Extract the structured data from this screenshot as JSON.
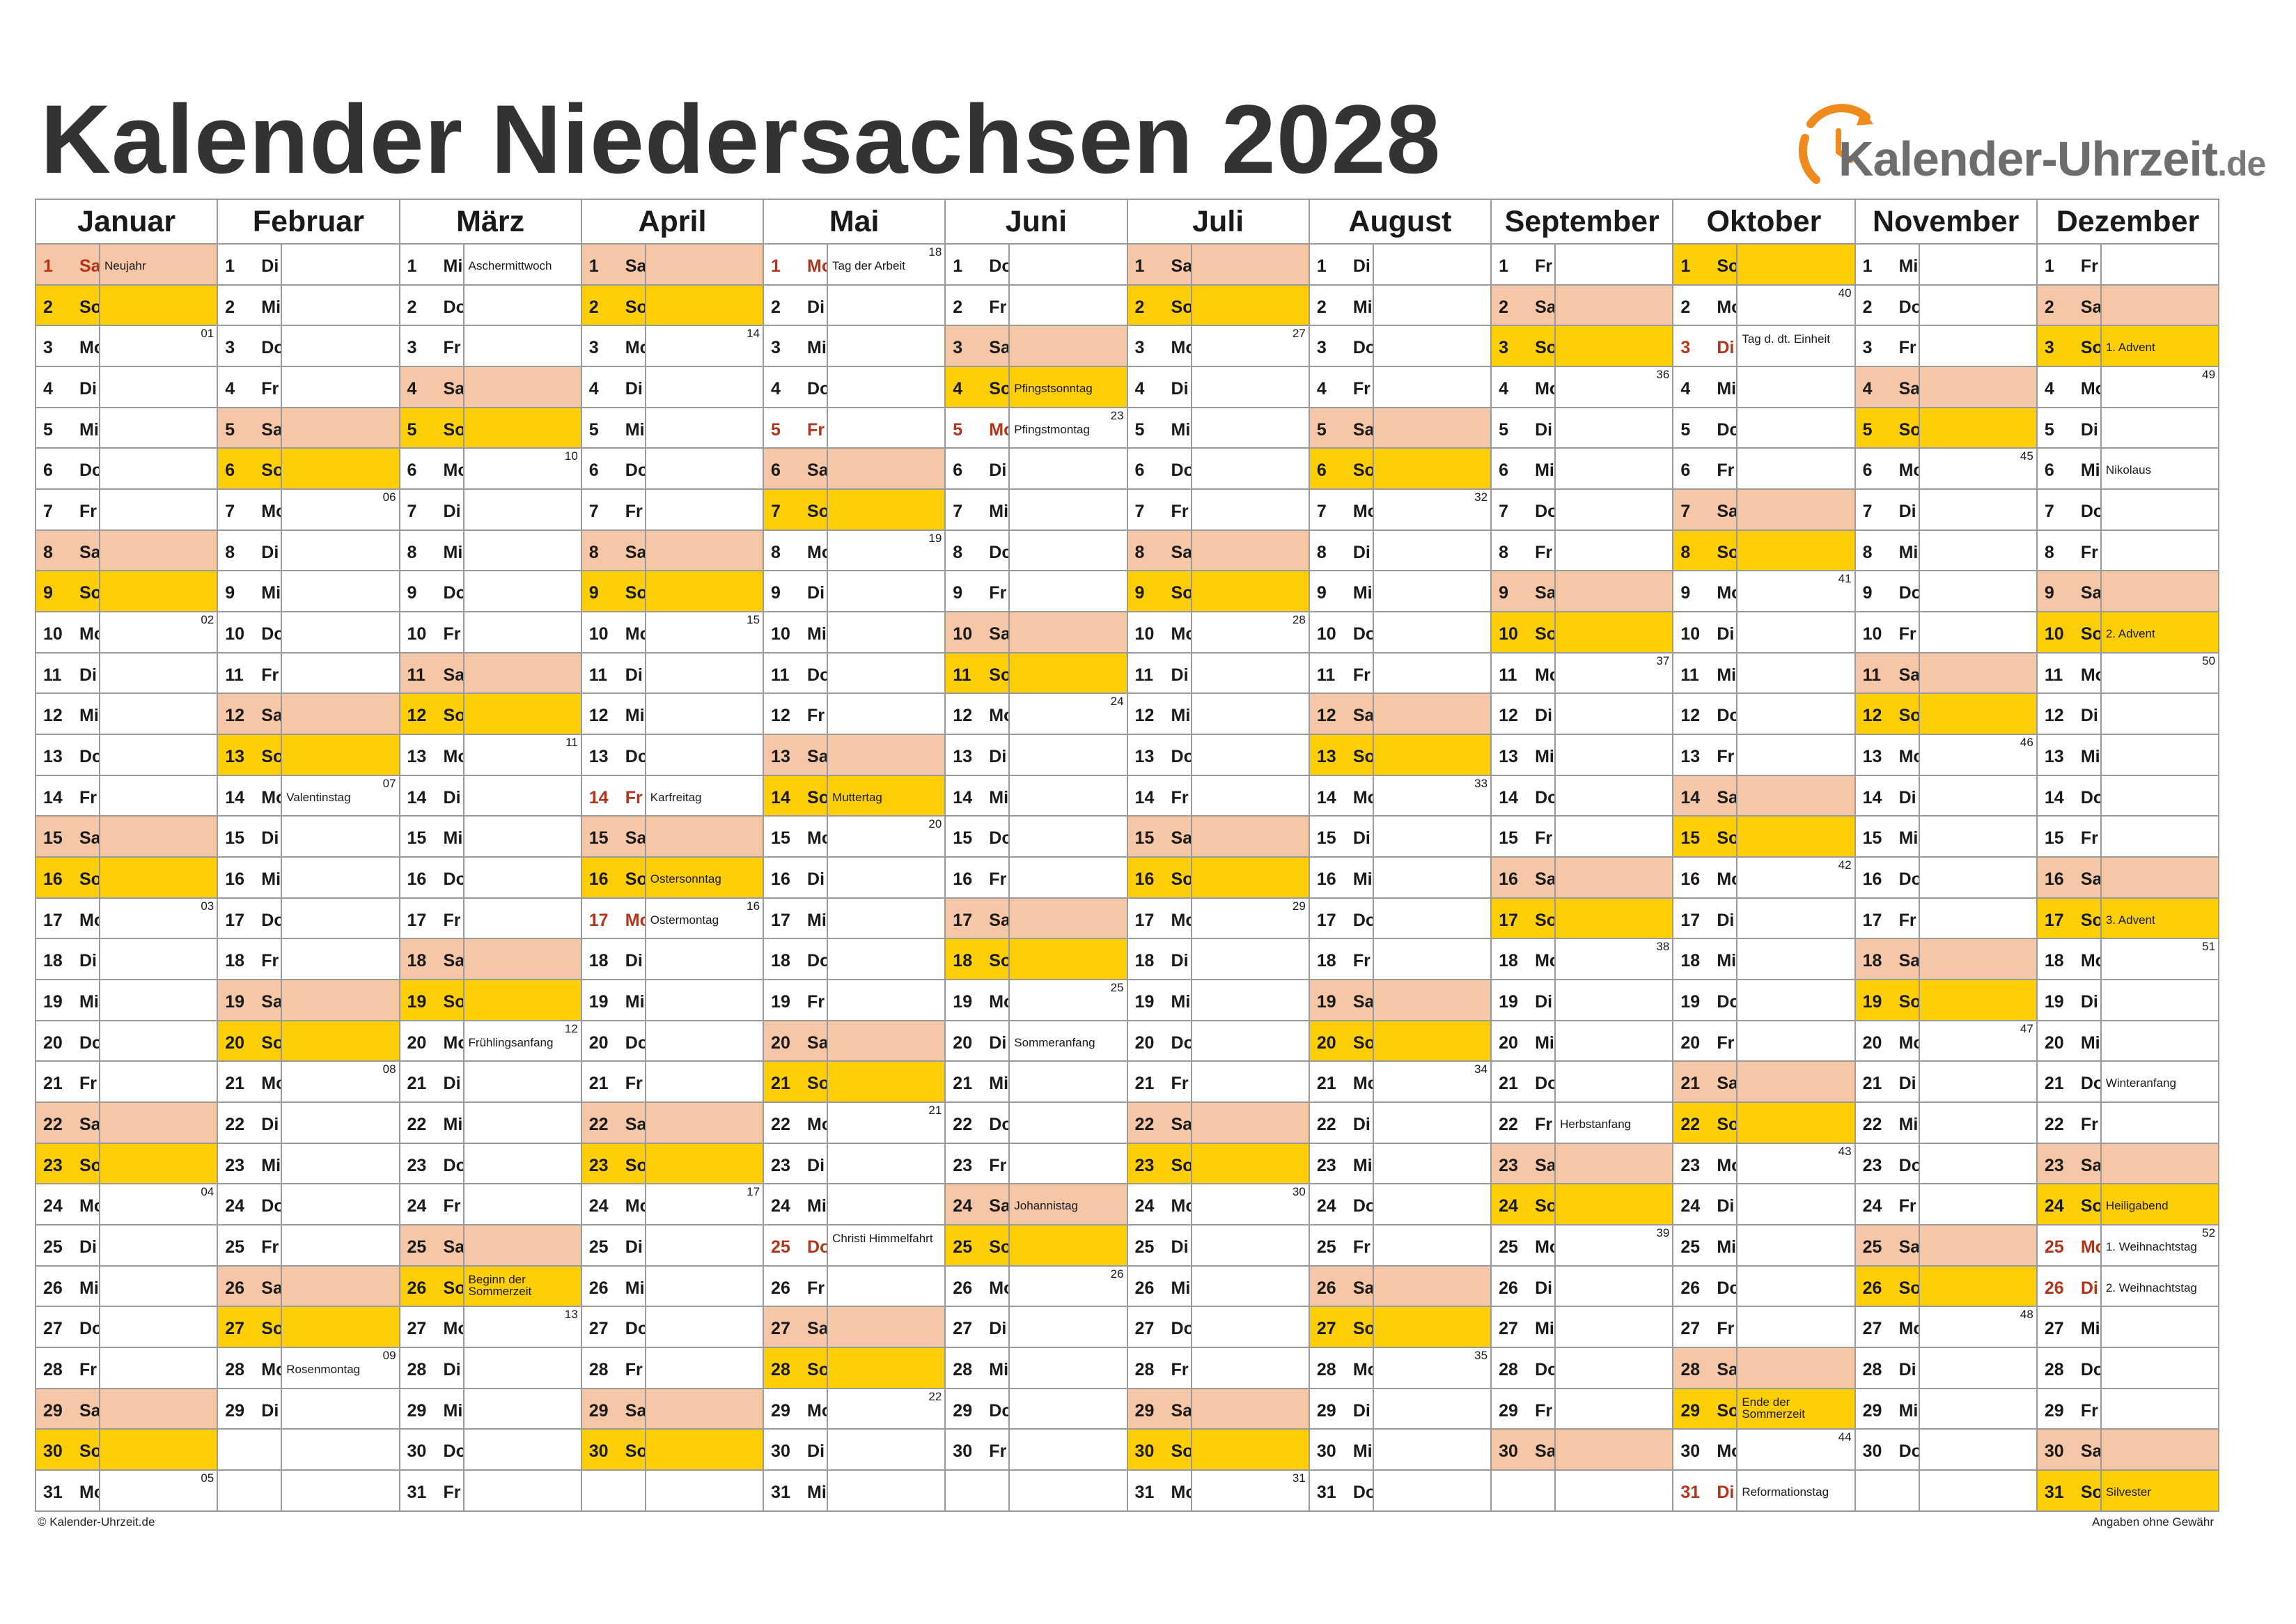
{
  "title": "Kalender Niedersachsen 2028",
  "logo": {
    "text": "Kalender-Uhrzeit",
    "tld": ".de",
    "icon": "clock-arrow-icon",
    "color": "#f08a1c"
  },
  "colors": {
    "saturday": "#f5c7a6",
    "sunday": "#fecf07",
    "holiday_text": "#b3341a"
  },
  "footer": {
    "left": "© Kalender-Uhrzeit.de",
    "right": "Angaben ohne Gewähr"
  },
  "weekday_abbr": [
    "Mo",
    "Di",
    "Mi",
    "Do",
    "Fr",
    "Sa",
    "So"
  ],
  "months": [
    {
      "name": "Januar",
      "days": 31,
      "start": 5,
      "holidays": {
        "1": "Neujahr"
      },
      "weeks": {
        "3": "01",
        "10": "02",
        "17": "03",
        "24": "04",
        "31": "05"
      }
    },
    {
      "name": "Februar",
      "days": 29,
      "start": 1,
      "notes": {
        "14": "Valentinstag",
        "28": "Rosenmontag"
      },
      "weeks": {
        "7": "06",
        "14": "07",
        "21": "08",
        "28": "09"
      }
    },
    {
      "name": "März",
      "days": 31,
      "start": 2,
      "notes": {
        "1": "Aschermittwoch",
        "20": "Frühlingsanfang",
        "26": "Beginn der Sommerzeit"
      },
      "weeks": {
        "6": "10",
        "13": "11",
        "20": "12",
        "27": "13"
      }
    },
    {
      "name": "April",
      "days": 30,
      "start": 5,
      "holidays": {
        "14": "Karfreitag",
        "17": "Ostermontag"
      },
      "notes": {
        "16": "Ostersonntag"
      },
      "weeks": {
        "3": "14",
        "10": "15",
        "17": "16",
        "24": "17"
      }
    },
    {
      "name": "Mai",
      "days": 31,
      "start": 0,
      "holidays": {
        "1": "Tag der Arbeit",
        "5": "",
        "25": "Christi Himmelfahrt"
      },
      "notes": {
        "14": "Muttertag"
      },
      "weeks": {
        "1": "18",
        "8": "19",
        "15": "20",
        "22": "21",
        "29": "22"
      }
    },
    {
      "name": "Juni",
      "days": 30,
      "start": 3,
      "holidays": {
        "5": "Pfingstmontag"
      },
      "notes": {
        "4": "Pfingstsonntag",
        "20": "Sommeranfang",
        "24": "Johannistag"
      },
      "weeks": {
        "5": "23",
        "12": "24",
        "19": "25",
        "26": "26"
      }
    },
    {
      "name": "Juli",
      "days": 31,
      "start": 5,
      "weeks": {
        "3": "27",
        "10": "28",
        "17": "29",
        "24": "30",
        "31": "31"
      }
    },
    {
      "name": "August",
      "days": 31,
      "start": 1,
      "weeks": {
        "7": "32",
        "14": "33",
        "21": "34",
        "28": "35"
      }
    },
    {
      "name": "September",
      "days": 30,
      "start": 4,
      "notes": {
        "22": "Herbstanfang"
      },
      "weeks": {
        "4": "36",
        "11": "37",
        "18": "38",
        "25": "39"
      }
    },
    {
      "name": "Oktober",
      "days": 31,
      "start": 6,
      "holidays": {
        "3": "Tag d. dt. Einheit",
        "31": "Reformationstag"
      },
      "notes": {
        "29": "Ende der Sommerzeit"
      },
      "weeks": {
        "2": "40",
        "9": "41",
        "16": "42",
        "23": "43",
        "30": "44"
      }
    },
    {
      "name": "November",
      "days": 30,
      "start": 2,
      "weeks": {
        "6": "45",
        "13": "46",
        "20": "47",
        "27": "48"
      }
    },
    {
      "name": "Dezember",
      "days": 31,
      "start": 4,
      "holidays": {
        "25": "1. Weihnachtstag",
        "26": "2. Weihnachtstag"
      },
      "notes": {
        "3": "1. Advent",
        "6": "Nikolaus",
        "10": "2. Advent",
        "17": "3. Advent",
        "21": "Winteranfang",
        "24": "Heiligabend",
        "31": "Silvester"
      },
      "weeks": {
        "4": "49",
        "11": "50",
        "18": "51",
        "25": "52"
      }
    }
  ]
}
